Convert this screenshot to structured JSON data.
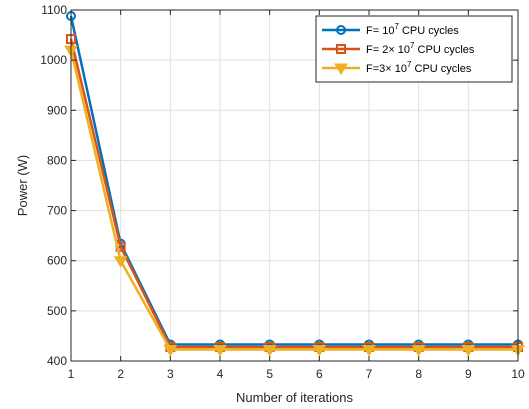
{
  "chart_data": {
    "type": "line",
    "title": "",
    "xlabel": "Number of iterations",
    "ylabel": "Power (W)",
    "x": [
      1,
      2,
      3,
      4,
      5,
      6,
      7,
      8,
      9,
      10
    ],
    "xlim": [
      1,
      10
    ],
    "ylim": [
      400,
      1100
    ],
    "xticks": [
      "1",
      "2",
      "3",
      "4",
      "5",
      "6",
      "7",
      "8",
      "9",
      "10"
    ],
    "yticks": [
      "400",
      "500",
      "600",
      "700",
      "800",
      "900",
      "1000",
      "1100"
    ],
    "grid": true,
    "legend_position": "top-right",
    "series": [
      {
        "name_prefix": "F= 10",
        "name_sup": "7",
        "name_suffix": " CPU cycles",
        "color": "#0072BD",
        "marker": "circle",
        "values": [
          1088,
          634,
          433,
          433,
          433,
          433,
          433,
          433,
          433,
          433
        ]
      },
      {
        "name_prefix": "F= 2× 10",
        "name_sup": "7",
        "name_suffix": " CPU cycles",
        "color": "#D95319",
        "marker": "square",
        "values": [
          1042,
          628,
          428,
          428,
          428,
          428,
          428,
          428,
          428,
          428
        ]
      },
      {
        "name_prefix": "F=3× 10",
        "name_sup": "7",
        "name_suffix": " CPU cycles",
        "color": "#EDB120",
        "marker": "triangle-down",
        "values": [
          1020,
          600,
          423,
          423,
          423,
          423,
          423,
          423,
          423,
          423
        ]
      }
    ]
  }
}
